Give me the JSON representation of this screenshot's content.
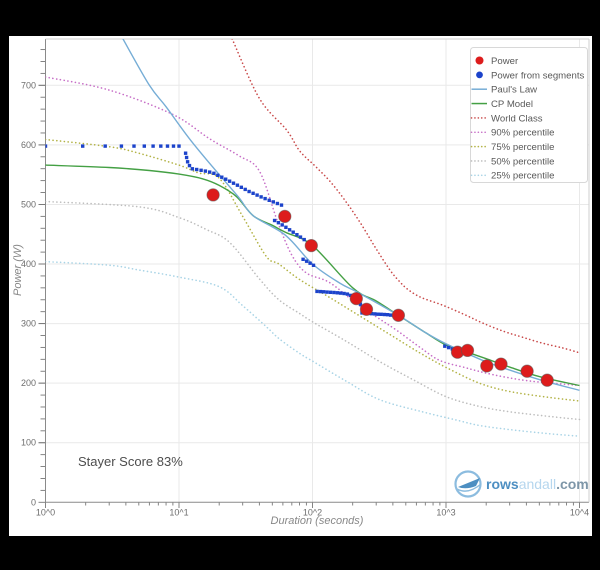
{
  "window": {
    "background": "#000000",
    "figure_background": "#ffffff"
  },
  "annotation": {
    "text": "Stayer Score 83%"
  },
  "logo": {
    "part1": "rows",
    "part2": "andall",
    "part3": ".com",
    "color1": "#4d8fc2",
    "color2": "#b5d6ee",
    "color3": "#7e96a8",
    "ring_color": "#8cbcdf"
  },
  "legend": {
    "items": [
      {
        "label": "Power",
        "marker": "dot",
        "color": "#dd1c1c"
      },
      {
        "label": "Power from segments",
        "marker": "dot",
        "color": "#1c43cb"
      },
      {
        "label": "Paul's Law",
        "marker": "line",
        "color": "#76add6"
      },
      {
        "label": "CP Model",
        "marker": "line",
        "color": "#44a044"
      },
      {
        "label": "World Class",
        "marker": "dotted",
        "color": "#c94a4a"
      },
      {
        "label": "90% percentile",
        "marker": "dotted",
        "color": "#c76fc7"
      },
      {
        "label": "75% percentile",
        "marker": "dotted",
        "color": "#b3b347"
      },
      {
        "label": "50% percentile",
        "marker": "dotted",
        "color": "#bdbdbd"
      },
      {
        "label": "25% percentile",
        "marker": "dotted",
        "color": "#a9d4e6"
      }
    ]
  },
  "chart_data": {
    "type": "line",
    "title": "",
    "x_axis": {
      "label": "Duration (seconds)",
      "scale": "log",
      "range": [
        1,
        12000
      ],
      "tick_values": [
        1,
        10,
        100,
        1000,
        10000
      ],
      "tick_labels": [
        "10^0",
        "10^1",
        "10^2",
        "10^3",
        "10^4"
      ]
    },
    "y_axis": {
      "label": "Power (W)",
      "scale": "linear",
      "range": [
        0,
        777
      ],
      "tick_values": [
        0,
        100,
        200,
        300,
        400,
        500,
        600,
        700
      ]
    },
    "grid": true,
    "legend_position": "upper right",
    "series": [
      {
        "name": "Power",
        "kind": "scatter",
        "color": "#dd1c1c",
        "points": [
          [
            18,
            516
          ],
          [
            62,
            480
          ],
          [
            98,
            431
          ],
          [
            213,
            342
          ],
          [
            254,
            324
          ],
          [
            440,
            314
          ],
          [
            1220,
            252
          ],
          [
            1450,
            255
          ],
          [
            2020,
            229
          ],
          [
            2580,
            232
          ],
          [
            4050,
            220
          ],
          [
            5730,
            205
          ]
        ]
      },
      {
        "name": "Power from segments",
        "kind": "scatter-trails",
        "color": "#1c43cb",
        "trails": [
          {
            "dots": [
              [
                1.0,
                598
              ],
              [
                1.9,
                598
              ],
              [
                2.8,
                598
              ],
              [
                3.7,
                598
              ],
              [
                4.6,
                598
              ],
              [
                5.5,
                598
              ],
              [
                6.4,
                598
              ],
              [
                7.3,
                598
              ],
              [
                8.2,
                598
              ],
              [
                9.1,
                598
              ],
              [
                10,
                598
              ]
            ]
          },
          {
            "gap": 4.4,
            "anchors": [
              [
                11.2,
                586
              ],
              [
                11.7,
                568
              ],
              [
                12.5,
                560
              ],
              [
                15,
                557
              ],
              [
                18,
                553
              ],
              [
                25,
                537
              ],
              [
                34,
                521
              ],
              [
                45,
                509
              ],
              [
                60,
                498
              ]
            ]
          },
          {
            "gap": 4.4,
            "anchors": [
              [
                52,
                473
              ],
              [
                60,
                465
              ],
              [
                70,
                455
              ],
              [
                88,
                440
              ]
            ]
          },
          {
            "gap": 4.0,
            "anchors": [
              [
                85,
                408
              ],
              [
                95,
                402
              ],
              [
                105,
                396
              ]
            ]
          },
          {
            "gap": 3.4,
            "anchors": [
              [
                108,
                354
              ],
              [
                150,
                352
              ],
              [
                180,
                350
              ],
              [
                205,
                345
              ],
              [
                222,
                337
              ],
              [
                240,
                325
              ]
            ]
          },
          {
            "gap": 3.2,
            "anchors": [
              [
                235,
                318
              ],
              [
                300,
                316
              ],
              [
                360,
                315
              ],
              [
                430,
                313
              ]
            ]
          },
          {
            "gap": 4.0,
            "anchors": [
              [
                980,
                262
              ],
              [
                1100,
                258
              ],
              [
                1190,
                254
              ]
            ]
          }
        ]
      },
      {
        "name": "Paul's Law",
        "kind": "line",
        "style": "solid",
        "color": "#76add6",
        "points": [
          [
            3.8,
            778
          ],
          [
            6,
            700
          ],
          [
            8,
            664
          ],
          [
            12,
            610
          ],
          [
            19,
            556
          ],
          [
            28,
            512
          ],
          [
            36,
            481
          ],
          [
            63,
            448
          ],
          [
            100,
            400
          ],
          [
            160,
            368
          ],
          [
            220,
            352
          ],
          [
            440,
            314
          ],
          [
            700,
            285
          ],
          [
            1000,
            266
          ],
          [
            1800,
            240
          ],
          [
            2500,
            228
          ],
          [
            5000,
            206
          ],
          [
            10000,
            188
          ]
        ]
      },
      {
        "name": "CP Model",
        "kind": "line",
        "style": "solid",
        "color": "#44a044",
        "points": [
          [
            1,
            566
          ],
          [
            3,
            562
          ],
          [
            6,
            557
          ],
          [
            10,
            551
          ],
          [
            15,
            543
          ],
          [
            20,
            532
          ],
          [
            27,
            513
          ],
          [
            36,
            481
          ],
          [
            50,
            465
          ],
          [
            63,
            453
          ],
          [
            100,
            431
          ],
          [
            200,
            360
          ],
          [
            300,
            338
          ],
          [
            440,
            314
          ],
          [
            700,
            285
          ],
          [
            1000,
            264
          ],
          [
            1450,
            252
          ],
          [
            2000,
            241
          ],
          [
            3000,
            227
          ],
          [
            5000,
            211
          ],
          [
            10000,
            196
          ]
        ]
      },
      {
        "name": "World Class",
        "kind": "line",
        "style": "dotted",
        "color": "#c94a4a",
        "points": [
          [
            25,
            778
          ],
          [
            40,
            678
          ],
          [
            64,
            625
          ],
          [
            80,
            590
          ],
          [
            104,
            565
          ],
          [
            135,
            539
          ],
          [
            175,
            507
          ],
          [
            230,
            468
          ],
          [
            295,
            428
          ],
          [
            380,
            390
          ],
          [
            443,
            372
          ],
          [
            520,
            357
          ],
          [
            650,
            344
          ],
          [
            940,
            331
          ],
          [
            1350,
            316
          ],
          [
            1880,
            301
          ],
          [
            2700,
            287
          ],
          [
            3760,
            277
          ],
          [
            5300,
            267
          ],
          [
            7500,
            259
          ],
          [
            10000,
            251
          ]
        ]
      },
      {
        "name": "90% percentile",
        "kind": "line",
        "style": "dotted",
        "color": "#c76fc7",
        "points": [
          [
            1,
            714
          ],
          [
            3,
            692
          ],
          [
            9,
            651
          ],
          [
            17,
            610
          ],
          [
            28,
            582
          ],
          [
            40,
            556
          ],
          [
            55,
            470
          ],
          [
            70,
            415
          ],
          [
            90,
            385
          ],
          [
            134,
            369
          ],
          [
            213,
            334
          ],
          [
            307,
            310
          ],
          [
            432,
            288
          ],
          [
            640,
            260
          ],
          [
            900,
            238
          ],
          [
            1400,
            226
          ],
          [
            1900,
            218
          ],
          [
            2800,
            210
          ],
          [
            4500,
            203
          ],
          [
            10000,
            196
          ]
        ]
      },
      {
        "name": "75% percentile",
        "kind": "line",
        "style": "dotted",
        "color": "#b3b347",
        "points": [
          [
            1,
            609
          ],
          [
            3,
            597
          ],
          [
            5,
            586
          ],
          [
            10,
            566
          ],
          [
            14,
            553
          ],
          [
            20,
            544
          ],
          [
            30,
            480
          ],
          [
            45,
            413
          ],
          [
            56,
            400
          ],
          [
            80,
            374
          ],
          [
            134,
            344
          ],
          [
            225,
            313
          ],
          [
            378,
            282
          ],
          [
            635,
            251
          ],
          [
            1010,
            226
          ],
          [
            1780,
            200
          ],
          [
            3000,
            186
          ],
          [
            6000,
            176
          ],
          [
            10000,
            170
          ]
        ]
      },
      {
        "name": "50% percentile",
        "kind": "line",
        "style": "dotted",
        "color": "#bdbdbd",
        "points": [
          [
            1,
            505
          ],
          [
            5,
            496
          ],
          [
            10,
            478
          ],
          [
            16,
            458
          ],
          [
            24,
            436
          ],
          [
            40,
            375
          ],
          [
            56,
            340
          ],
          [
            80,
            317
          ],
          [
            100,
            303
          ],
          [
            180,
            270
          ],
          [
            320,
            236
          ],
          [
            565,
            206
          ],
          [
            1010,
            177
          ],
          [
            1780,
            161
          ],
          [
            3000,
            152
          ],
          [
            6000,
            144
          ],
          [
            10000,
            139
          ]
        ]
      },
      {
        "name": "25% percentile",
        "kind": "line",
        "style": "dotted",
        "color": "#a9d4e6",
        "points": [
          [
            1,
            404
          ],
          [
            3,
            398
          ],
          [
            5,
            390
          ],
          [
            10,
            378
          ],
          [
            20,
            362
          ],
          [
            30,
            330
          ],
          [
            45,
            295
          ],
          [
            56,
            275
          ],
          [
            80,
            250
          ],
          [
            100,
            237
          ],
          [
            180,
            203
          ],
          [
            320,
            172
          ],
          [
            665,
            152
          ],
          [
            1200,
            138
          ],
          [
            1780,
            129
          ],
          [
            3000,
            122
          ],
          [
            6000,
            115
          ],
          [
            10000,
            111
          ]
        ]
      }
    ]
  }
}
